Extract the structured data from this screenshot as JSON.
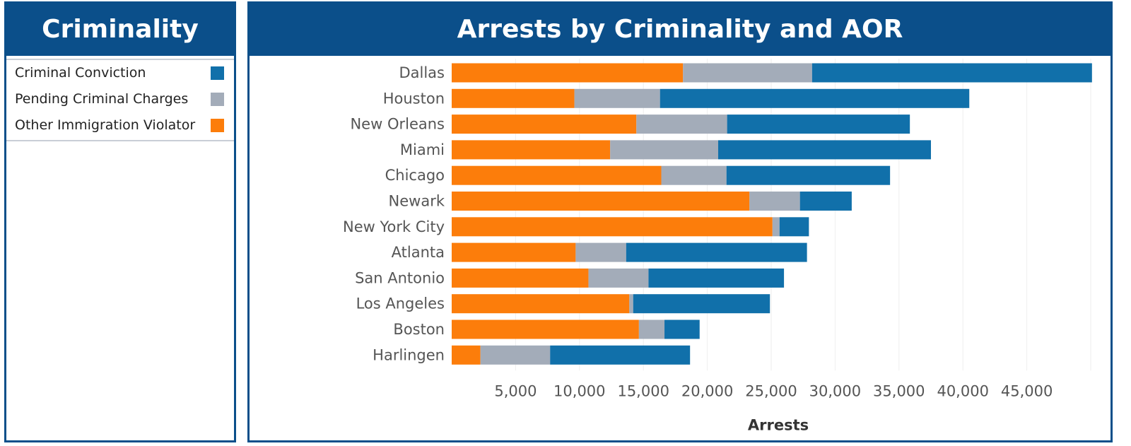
{
  "legend": {
    "title": "Criminality",
    "items": [
      {
        "label": "Criminal Conviction",
        "color": "#1170aa"
      },
      {
        "label": "Pending Criminal Charges",
        "color": "#a3acb9"
      },
      {
        "label": "Other Immigration Violator",
        "color": "#fc7d0b"
      }
    ]
  },
  "chart_data": {
    "type": "bar",
    "orientation": "horizontal",
    "stacked": true,
    "title": "Arrests by Criminality and AOR",
    "xlabel": "Arrests",
    "ylabel": "",
    "xlim": [
      0,
      50000
    ],
    "xticks": [
      5000,
      10000,
      15000,
      20000,
      25000,
      30000,
      35000,
      40000,
      45000
    ],
    "xtick_labels": [
      "5,000",
      "10,000",
      "15,000",
      "20,000",
      "25,000",
      "30,000",
      "35,000",
      "40,000",
      "45,000"
    ],
    "categories": [
      "Dallas",
      "Houston",
      "New Orleans",
      "Miami",
      "Chicago",
      "Newark",
      "New York City",
      "Atlanta",
      "San Antonio",
      "Los Angeles",
      "Boston",
      "Harlingen"
    ],
    "series": [
      {
        "name": "Other Immigration Violator",
        "color": "#fc7d0b",
        "values": [
          18100,
          9600,
          14450,
          12400,
          16400,
          23300,
          25100,
          9700,
          10700,
          13900,
          14650,
          2250
        ]
      },
      {
        "name": "Pending Criminal Charges",
        "color": "#a3acb9",
        "values": [
          10100,
          6700,
          7100,
          8450,
          5100,
          3950,
          550,
          3950,
          4700,
          300,
          2000,
          5450
        ]
      },
      {
        "name": "Criminal Conviction",
        "color": "#1170aa",
        "values": [
          21900,
          24200,
          14300,
          16650,
          12800,
          4050,
          2300,
          14150,
          10600,
          10700,
          2750,
          10950
        ]
      }
    ],
    "legend_position": "left-panel",
    "grid": true
  }
}
